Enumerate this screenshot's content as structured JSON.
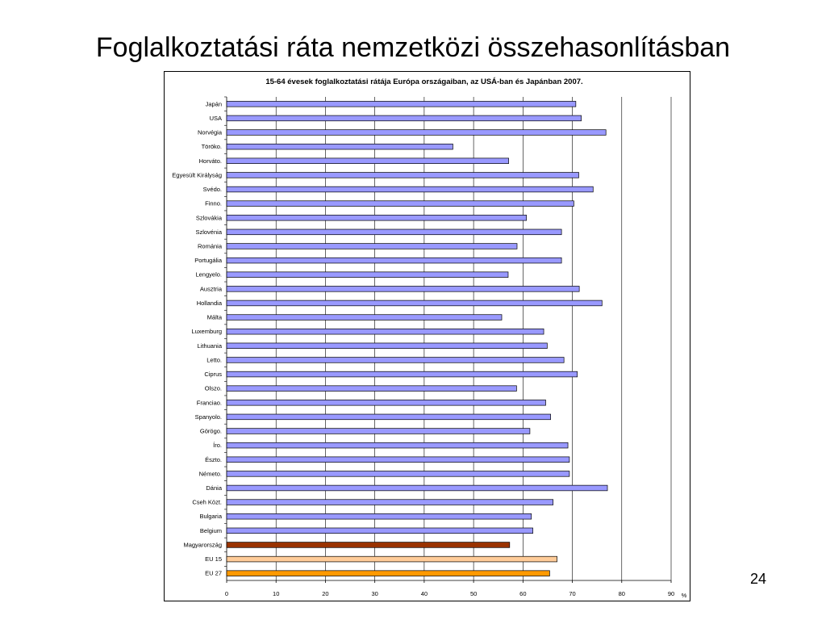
{
  "slide": {
    "title": "Foglalkoztatási ráta nemzetközi összehasonlításban",
    "page_number": "24"
  },
  "colors": {
    "default_bar": "#9999FF",
    "hungary_bar": "#993300",
    "eu15_bar": "#FFCC99",
    "eu27_bar": "#FF9900",
    "grid": "#000000"
  },
  "chart_data": {
    "type": "bar",
    "orientation": "horizontal",
    "title": "15-64 évesek foglalkoztatási rátája Európa országaiban, az USÁ-ban és Japánban  2007.",
    "xlabel": "",
    "x_unit_label": "%",
    "ylabel": "",
    "xlim": [
      0,
      90
    ],
    "x_ticks": [
      "0",
      "10",
      "20",
      "30",
      "40",
      "50",
      "60",
      "70",
      "80",
      "90"
    ],
    "grid": "vertical gridlines",
    "legend": "none",
    "categories": [
      "Japán",
      "USA",
      "Norvégia",
      "Törökо.",
      "Horváto.",
      "Egyesült Királyság",
      "Svédo.",
      "Finno.",
      "Szlovákia",
      "Szlovénia",
      "Románia",
      "Portugália",
      "Lengyelo.",
      "Ausztria",
      "Hollandia",
      "Málta",
      "Luxemburg",
      "Lithuania",
      "Letto.",
      "Ciprus",
      "Olszo.",
      "Franciao.",
      "Spanyolo.",
      "Görögo.",
      "Íro.",
      "Észto.",
      "Németо.",
      "Dánia",
      "Cseh Közt.",
      "Bulgaria",
      "Belgium",
      "Magyarország",
      "EU 15",
      "EU 27"
    ],
    "values": [
      70.7,
      71.8,
      76.8,
      45.8,
      57.1,
      71.3,
      74.2,
      70.3,
      60.7,
      67.8,
      58.8,
      67.8,
      57.0,
      71.4,
      76.0,
      55.7,
      64.2,
      64.9,
      68.3,
      71.0,
      58.7,
      64.6,
      65.6,
      61.4,
      69.1,
      69.4,
      69.4,
      77.1,
      66.1,
      61.7,
      62.0,
      57.3,
      66.9,
      65.4
    ],
    "bar_colors": [
      "default",
      "default",
      "default",
      "default",
      "default",
      "default",
      "default",
      "default",
      "default",
      "default",
      "default",
      "default",
      "default",
      "default",
      "default",
      "default",
      "default",
      "default",
      "default",
      "default",
      "default",
      "default",
      "default",
      "default",
      "default",
      "default",
      "default",
      "default",
      "default",
      "default",
      "default",
      "hungary",
      "eu15",
      "eu27"
    ]
  }
}
